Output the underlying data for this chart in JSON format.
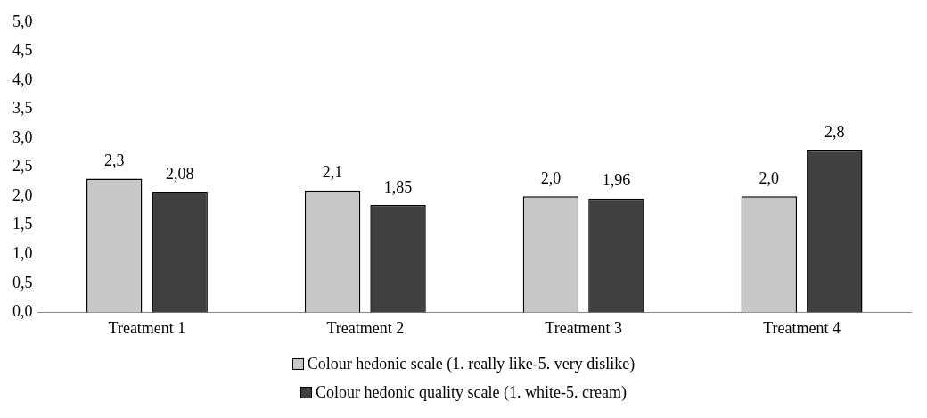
{
  "chart_data": {
    "type": "bar",
    "categories": [
      "Treatment 1",
      "Treatment 2",
      "Treatment 3",
      "Treatment 4"
    ],
    "series": [
      {
        "name": "Colour hedonic scale (1. really like-5. very dislike)",
        "color": "#c8c8c8",
        "values": [
          2.3,
          2.1,
          2.0,
          2.0
        ],
        "value_labels": [
          "2,3",
          "2,1",
          "2,0",
          "2,0"
        ]
      },
      {
        "name": "Colour hedonic quality scale (1. white-5. cream)",
        "color": "#404040",
        "values": [
          2.08,
          1.85,
          1.96,
          2.8
        ],
        "value_labels": [
          "2,08",
          "1,85",
          "1,96",
          "2,8"
        ]
      }
    ],
    "ylim": [
      0,
      5
    ],
    "yticks": [
      {
        "value": 0,
        "label": "0,0"
      },
      {
        "value": 0.5,
        "label": "0,5"
      },
      {
        "value": 1,
        "label": "1,0"
      },
      {
        "value": 1.5,
        "label": "1,5"
      },
      {
        "value": 2,
        "label": "2,0"
      },
      {
        "value": 2.5,
        "label": "2,5"
      },
      {
        "value": 3,
        "label": "3,0"
      },
      {
        "value": 3.5,
        "label": "3,5"
      },
      {
        "value": 4,
        "label": "4,0"
      },
      {
        "value": 4.5,
        "label": "4,5"
      },
      {
        "value": 5,
        "label": "5,0"
      }
    ],
    "grid": false,
    "legend": "bottom"
  }
}
